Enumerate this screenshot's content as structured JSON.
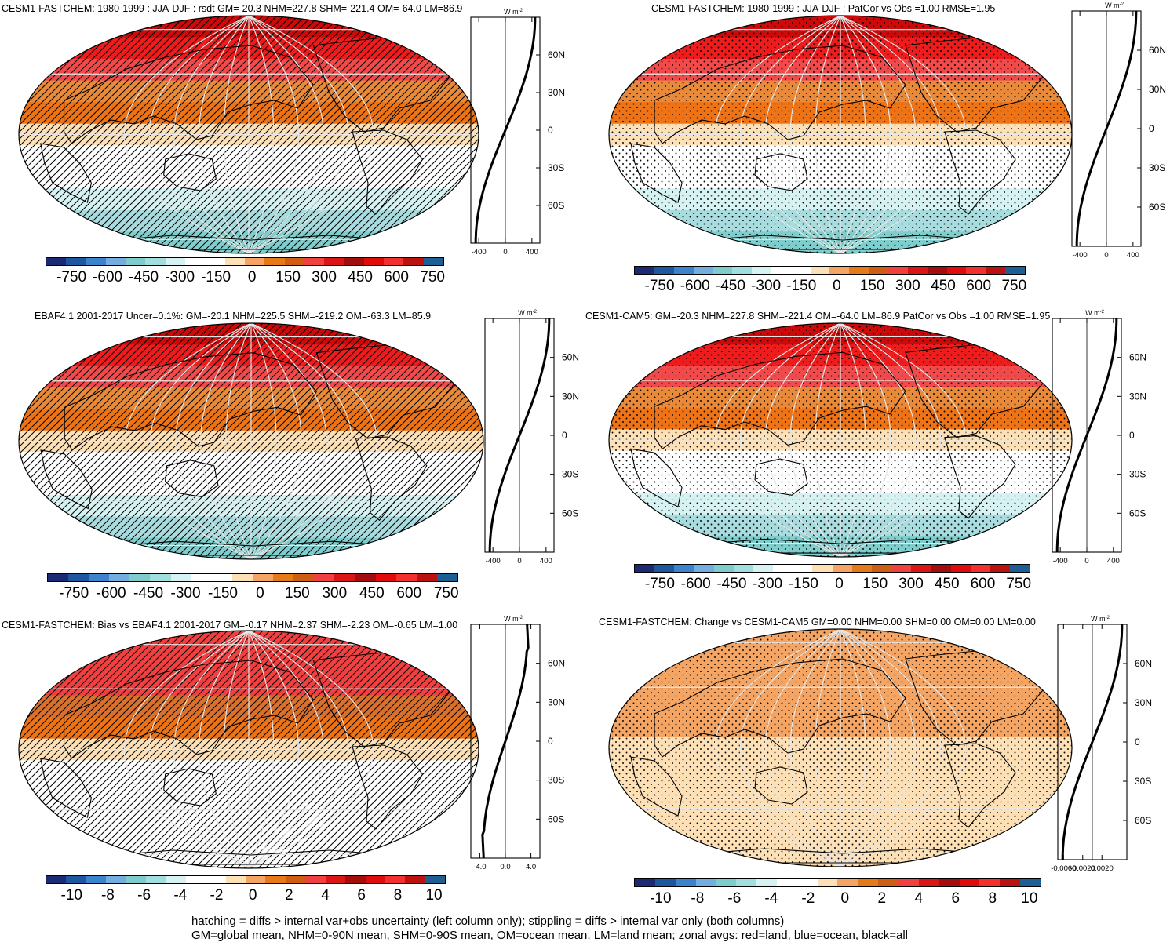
{
  "colors": {
    "palette": [
      "#1b2a73",
      "#1f56a0",
      "#3b83cc",
      "#74aee0",
      "#7fcccc",
      "#a3dede",
      "#d6f2f2",
      "#ffffff",
      "#ffffff",
      "#fde0b5",
      "#f5a563",
      "#e67a17",
      "#cf5d14",
      "#f04040",
      "#d91515",
      "#a30d0d",
      "#e00c0c",
      "#f23030",
      "#bb1111",
      "#1c5f95"
    ],
    "zonal_line": "#000000"
  },
  "panels": [
    {
      "title": "CESM1-FASTCHEM: 1980-1999 : JJA-DJF : rsdt GM=-20.3 NHM=227.8 SHM=-221.4 OM=-64.0 LM=86.9",
      "pattern": "hatch",
      "bands": [
        "#cc0a0a",
        "#ee1c1c",
        "#f24a4a",
        "#e88a3a",
        "#ee7316",
        "#fde0b5",
        "#ffffff",
        "#ffffff",
        "#d6f2f2",
        "#a9dcdf",
        "#7fcdcc"
      ],
      "colorbar_labels": [
        "-750",
        "-600",
        "-450",
        "-300",
        "-150",
        "0",
        "150",
        "300",
        "450",
        "600",
        "750"
      ],
      "zonal": {
        "units_w": "W",
        "units_m": "m",
        "units_exp": "-2",
        "lat_labels": [
          "60N",
          "30N",
          "0",
          "30S",
          "60S"
        ],
        "x_ticks": [
          "-400",
          "0",
          "400"
        ],
        "xlim": [
          -520,
          520
        ],
        "curve": "flux"
      }
    },
    {
      "title": "CESM1-FASTCHEM: 1980-1999 : JJA-DJF : PatCor vs Obs =1.00 RMSE=1.95",
      "pattern": "stipple",
      "bands": [
        "#cc0a0a",
        "#ee1c1c",
        "#f24a4a",
        "#e88a3a",
        "#ee7316",
        "#fde0b5",
        "#ffffff",
        "#ffffff",
        "#d6f2f2",
        "#a9dcdf",
        "#7fcdcc"
      ],
      "colorbar_labels": [
        "-750",
        "-600",
        "-450",
        "-300",
        "-150",
        "0",
        "150",
        "300",
        "450",
        "600",
        "750"
      ],
      "zonal": {
        "units_w": "W",
        "units_m": "m",
        "units_exp": "-2",
        "lat_labels": [
          "60N",
          "30N",
          "0",
          "30S",
          "60S"
        ],
        "x_ticks": [
          "-400",
          "0",
          "400"
        ],
        "xlim": [
          -520,
          520
        ],
        "curve": "flux"
      }
    },
    {
      "title": "EBAF4.1 2001-2017 Uncer=0.1%: GM=-20.1 NHM=225.5 SHM=-219.2 OM=-63.3 LM=85.9",
      "pattern": "hatch",
      "bands": [
        "#cc0a0a",
        "#ee1c1c",
        "#f24a4a",
        "#e88a3a",
        "#ee7316",
        "#fde0b5",
        "#ffffff",
        "#ffffff",
        "#d6f2f2",
        "#a9dcdf",
        "#7fcdcc"
      ],
      "colorbar_labels": [
        "-750",
        "-600",
        "-450",
        "-300",
        "-150",
        "0",
        "150",
        "300",
        "450",
        "600",
        "750"
      ],
      "zonal": {
        "units_w": "W",
        "units_m": "m",
        "units_exp": "-2",
        "lat_labels": [
          "60N",
          "30N",
          "0",
          "30S",
          "60S"
        ],
        "x_ticks": [
          "-400",
          "0",
          "400"
        ],
        "xlim": [
          -520,
          520
        ],
        "curve": "flux"
      }
    },
    {
      "title": "CESM1-CAM5: GM=-20.3 NHM=227.8 SHM=-221.4 OM=-64.0 LM=86.9 PatCor vs Obs =1.00 RMSE=1.95",
      "pattern": "stipple",
      "bands": [
        "#cc0a0a",
        "#ee1c1c",
        "#f24a4a",
        "#e88a3a",
        "#ee7316",
        "#fde0b5",
        "#ffffff",
        "#ffffff",
        "#d6f2f2",
        "#a9dcdf",
        "#7fcdcc"
      ],
      "colorbar_labels": [
        "-750",
        "-600",
        "-450",
        "-300",
        "-150",
        "0",
        "150",
        "300",
        "450",
        "600",
        "750"
      ],
      "zonal": {
        "units_w": "W",
        "units_m": "m",
        "units_exp": "-2",
        "lat_labels": [
          "60N",
          "30N",
          "0",
          "30S",
          "60S"
        ],
        "x_ticks": [
          "-400",
          "0",
          "400"
        ],
        "xlim": [
          -520,
          520
        ],
        "curve": "flux"
      }
    },
    {
      "title": "CESM1-FASTCHEM: Bias vs EBAF4.1 2001-2017 GM=-0.17 NHM=2.37 SHM=-2.23 OM=-0.65 LM=1.00",
      "pattern": "hatch",
      "bands": [
        "#f24040",
        "#f24040",
        "#f24040",
        "#d9702e",
        "#ee7316",
        "#fde0b5",
        "#ffffff",
        "#ffffff",
        "#ffffff",
        "#ffffff",
        "#ffffff"
      ],
      "colorbar_labels": [
        "-10",
        "-8",
        "-6",
        "-4",
        "-2",
        "0",
        "2",
        "4",
        "6",
        "8",
        "10"
      ],
      "zonal": {
        "units_w": "W",
        "units_m": "m",
        "units_exp": "-2",
        "lat_labels": [
          "60N",
          "30N",
          "0",
          "30S",
          "60S"
        ],
        "x_ticks": [
          "-4.0",
          "0.0",
          "4.0"
        ],
        "xlim": [
          -5.4,
          5.4
        ],
        "curve": "bias"
      }
    },
    {
      "title": "CESM1-FASTCHEM: Change vs CESM1-CAM5 GM=0.00 NHM=0.00 SHM=0.00 OM=0.00 LM=0.00",
      "pattern": "stipple",
      "bands": [
        "#f5a563",
        "#f5a563",
        "#f5a563",
        "#f5a563",
        "#f5a563",
        "#fde0b5",
        "#fde0b5",
        "#fde0b5",
        "#fde0b5",
        "#fde0b5",
        "#fde0b5"
      ],
      "colorbar_labels": [
        "-10",
        "-8",
        "-6",
        "-4",
        "-2",
        "0",
        "2",
        "4",
        "6",
        "8",
        "10"
      ],
      "zonal": {
        "units_w": "W",
        "units_m": "m",
        "units_exp": "-2",
        "lat_labels": [
          "60N",
          "30N",
          "0",
          "30S",
          "60S"
        ],
        "x_ticks": [
          "-0.0060",
          "-0.0020",
          "0.0020"
        ],
        "xlim": [
          -0.0072,
          0.0072
        ],
        "curve": "flux"
      }
    }
  ],
  "chart_data": [
    {
      "type": "heatmap",
      "title": "CESM1-FASTCHEM: 1980-1999 : JJA-DJF : rsdt GM=-20.3 NHM=227.8 SHM=-221.4 OM=-64.0 LM=86.9",
      "xlabel": "",
      "ylabel": "",
      "colorbar": [
        -750,
        750
      ]
    },
    {
      "type": "heatmap",
      "title": "CESM1-FASTCHEM: 1980-1999 : JJA-DJF : PatCor vs Obs =1.00 RMSE=1.95",
      "colorbar": [
        -750,
        750
      ]
    },
    {
      "type": "heatmap",
      "title": "EBAF4.1 2001-2017 Uncer=0.1%: GM=-20.1 NHM=225.5 SHM=-219.2 OM=-63.3 LM=85.9",
      "colorbar": [
        -750,
        750
      ]
    },
    {
      "type": "heatmap",
      "title": "CESM1-CAM5: GM=-20.3 NHM=227.8 SHM=-221.4 OM=-64.0 LM=86.9 PatCor vs Obs =1.00 RMSE=1.95",
      "colorbar": [
        -750,
        750
      ]
    },
    {
      "type": "heatmap",
      "title": "CESM1-FASTCHEM: Bias vs EBAF4.1 2001-2017 GM=-0.17 NHM=2.37 SHM=-2.23 OM=-0.65 LM=1.00",
      "colorbar": [
        -10,
        10
      ]
    },
    {
      "type": "heatmap",
      "title": "CESM1-FASTCHEM: Change vs CESM1-CAM5 GM=0.00 NHM=0.00 SHM=0.00 OM=0.00 LM=0.00",
      "colorbar": [
        -10,
        10
      ]
    }
  ],
  "caption": {
    "line1": "hatching = diffs > internal var+obs uncertainty (left column only); stippling = diffs > internal var only (both columns)",
    "line2": "GM=global mean, NHM=0-90N mean, SHM=0-90S mean, OM=ocean mean, LM=land mean; zonal avgs: red=land, blue=ocean, black=all"
  }
}
